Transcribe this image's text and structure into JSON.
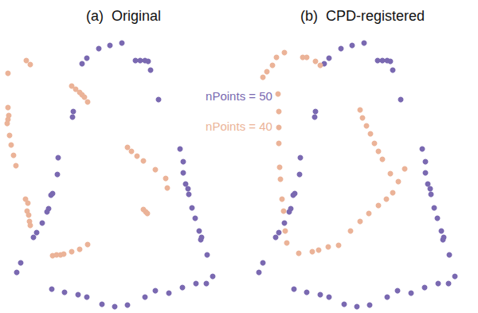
{
  "chart_data": [
    {
      "type": "scatter",
      "title": "(a)  Original",
      "xlim": [
        0,
        300
      ],
      "ylim": [
        0,
        393
      ],
      "xticks": [
        0,
        300
      ],
      "yticks": [
        0,
        393
      ],
      "tick_labels": false,
      "grid": false,
      "series": [
        {
          "color": "#7a69b1",
          "marker": "circle",
          "values": [
            [
              91,
              246
            ],
            [
              103,
              313
            ],
            [
              109,
              320
            ],
            [
              124,
              332
            ],
            [
              138,
              336
            ],
            [
              153,
              339
            ],
            [
              170,
              317
            ],
            [
              176,
              317
            ],
            [
              182,
              317
            ],
            [
              186,
              316
            ],
            [
              189,
              305
            ],
            [
              199,
              268
            ],
            [
              73,
              195
            ],
            [
              72,
              174
            ],
            [
              66,
              150
            ],
            [
              61,
              131
            ],
            [
              59,
              127
            ],
            [
              53,
              113
            ],
            [
              46,
              101
            ],
            [
              42,
              95
            ],
            [
              26,
              63
            ],
            [
              21,
              51
            ],
            [
              65,
              30
            ],
            [
              81,
              26
            ],
            [
              98,
              23
            ],
            [
              109,
              20
            ],
            [
              128,
              11
            ],
            [
              160,
              10
            ],
            [
              182,
              20
            ],
            [
              195,
              28
            ],
            [
              212,
              25
            ],
            [
              229,
              32
            ],
            [
              246,
              37
            ],
            [
              259,
              37
            ],
            [
              267,
              46
            ],
            [
              226,
              206
            ],
            [
              230,
              190
            ],
            [
              230,
              176
            ],
            [
              233,
              162
            ],
            [
              237,
              149
            ],
            [
              241,
              132
            ],
            [
              245,
              119
            ],
            [
              250,
              103
            ],
            [
              253,
              95
            ],
            [
              260,
              73
            ],
            [
              144,
              8
            ],
            [
              64,
              148
            ],
            [
              236,
              156
            ],
            [
              252,
              92
            ],
            [
              92,
              253
            ]
          ]
        },
        {
          "color": "#ebb398",
          "marker": "circle",
          "values": [
            [
              10,
              301
            ],
            [
              33,
              317
            ],
            [
              38,
              312
            ],
            [
              10,
              258
            ],
            [
              11,
              248
            ],
            [
              10,
              243
            ],
            [
              9,
              238
            ],
            [
              14,
              211
            ],
            [
              17,
              198
            ],
            [
              20,
              185
            ],
            [
              32,
              143
            ],
            [
              35,
              138
            ],
            [
              34,
              128
            ],
            [
              36,
              123
            ],
            [
              37,
              115
            ],
            [
              38,
              110
            ],
            [
              66,
              72
            ],
            [
              71,
              73
            ],
            [
              76,
              73
            ],
            [
              80,
              74
            ],
            [
              90,
              77
            ],
            [
              100,
              80
            ],
            [
              110,
              86
            ],
            [
              90,
              285
            ],
            [
              95,
              281
            ],
            [
              100,
              277
            ],
            [
              103,
              274
            ],
            [
              106,
              271
            ],
            [
              110,
              265
            ],
            [
              160,
              208
            ],
            [
              165,
              203
            ],
            [
              172,
              197
            ],
            [
              180,
              191
            ],
            [
              195,
              180
            ],
            [
              208,
              169
            ],
            [
              210,
              157
            ],
            [
              180,
              130
            ],
            [
              183,
              127
            ],
            [
              185,
              125
            ],
            [
              12,
              223
            ]
          ]
        }
      ]
    },
    {
      "type": "scatter",
      "title": "(b)  CPD-registered",
      "xlim": [
        0,
        300
      ],
      "ylim": [
        0,
        393
      ],
      "xticks": [
        0,
        300
      ],
      "yticks": [
        0,
        393
      ],
      "tick_labels": false,
      "grid": false,
      "series": [
        {
          "color": "#7a69b1",
          "marker": "circle",
          "values": [
            [
              95,
              246
            ],
            [
              107,
              313
            ],
            [
              113,
              320
            ],
            [
              128,
              332
            ],
            [
              142,
              336
            ],
            [
              157,
              339
            ],
            [
              174,
              317
            ],
            [
              180,
              317
            ],
            [
              186,
              317
            ],
            [
              190,
              316
            ],
            [
              193,
              305
            ],
            [
              203,
              268
            ],
            [
              77,
              195
            ],
            [
              76,
              174
            ],
            [
              70,
              150
            ],
            [
              65,
              131
            ],
            [
              63,
              127
            ],
            [
              57,
              113
            ],
            [
              50,
              101
            ],
            [
              46,
              95
            ],
            [
              30,
              63
            ],
            [
              25,
              51
            ],
            [
              69,
              30
            ],
            [
              85,
              26
            ],
            [
              102,
              23
            ],
            [
              113,
              20
            ],
            [
              132,
              11
            ],
            [
              164,
              10
            ],
            [
              186,
              20
            ],
            [
              199,
              28
            ],
            [
              216,
              25
            ],
            [
              233,
              32
            ],
            [
              250,
              37
            ],
            [
              263,
              37
            ],
            [
              271,
              46
            ],
            [
              230,
              206
            ],
            [
              234,
              190
            ],
            [
              234,
              176
            ],
            [
              237,
              162
            ],
            [
              241,
              149
            ],
            [
              245,
              132
            ],
            [
              249,
              119
            ],
            [
              254,
              103
            ],
            [
              257,
              95
            ],
            [
              264,
              73
            ],
            [
              148,
              8
            ],
            [
              68,
              148
            ],
            [
              240,
              156
            ],
            [
              256,
              92
            ],
            [
              96,
              253
            ]
          ]
        },
        {
          "color": "#ebb398",
          "marker": "circle",
          "values": [
            [
              30,
              296
            ],
            [
              35,
              303
            ],
            [
              42,
              311
            ],
            [
              47,
              321
            ],
            [
              57,
              327
            ],
            [
              80,
              321
            ],
            [
              85,
              321
            ],
            [
              96,
              316
            ],
            [
              102,
              311
            ],
            [
              49,
              275
            ],
            [
              50,
              253
            ],
            [
              50,
              233
            ],
            [
              50,
              213
            ],
            [
              51,
              183
            ],
            [
              52,
              168
            ],
            [
              54,
              143
            ],
            [
              56,
              128
            ],
            [
              58,
              103
            ],
            [
              60,
              88
            ],
            [
              75,
              75
            ],
            [
              92,
              77
            ],
            [
              100,
              79
            ],
            [
              112,
              83
            ],
            [
              125,
              85
            ],
            [
              152,
              255
            ],
            [
              155,
              245
            ],
            [
              160,
              235
            ],
            [
              165,
              225
            ],
            [
              170,
              213
            ],
            [
              175,
              203
            ],
            [
              180,
              193
            ],
            [
              190,
              175
            ],
            [
              208,
              181
            ],
            [
              200,
              165
            ],
            [
              193,
              151
            ],
            [
              185,
              143
            ],
            [
              175,
              135
            ],
            [
              163,
              125
            ],
            [
              152,
              115
            ],
            [
              140,
              103
            ]
          ]
        }
      ]
    }
  ],
  "annotations": [
    {
      "text": "nPoints = 50",
      "color": "#7a69b1"
    },
    {
      "text": "nPoints = 40",
      "color": "#ebb398"
    }
  ]
}
